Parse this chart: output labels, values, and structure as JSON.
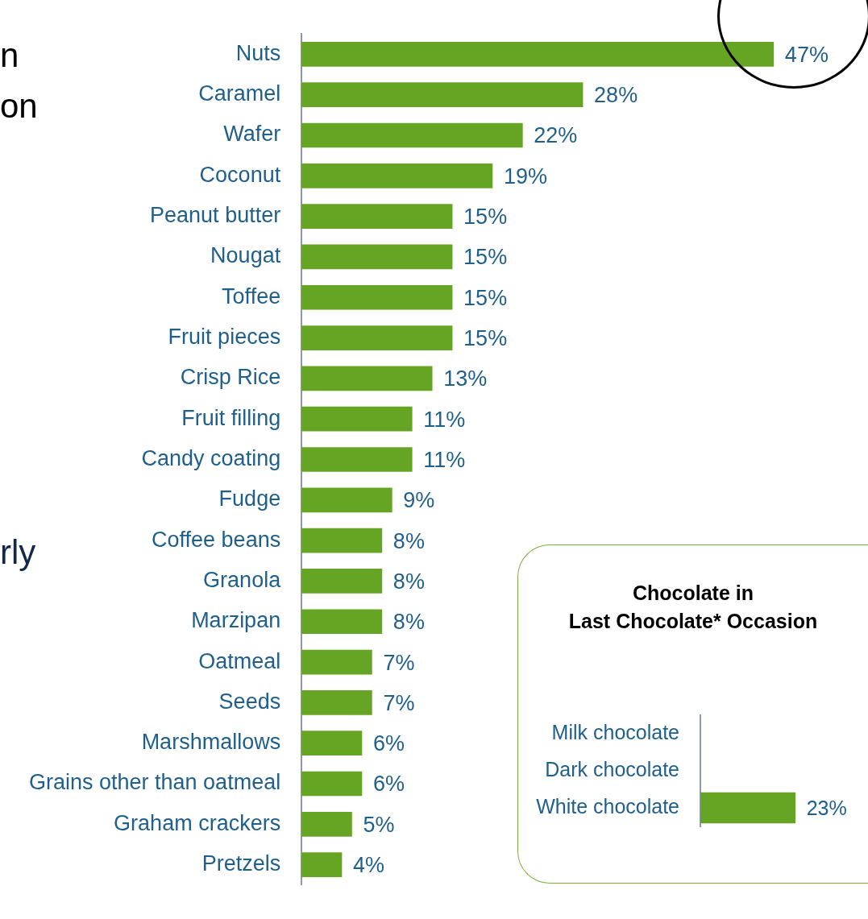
{
  "chart_data": [
    {
      "type": "bar",
      "orientation": "horizontal",
      "categories": [
        "Nuts",
        "Caramel",
        "Wafer",
        "Coconut",
        "Peanut butter",
        "Nougat",
        "Toffee",
        "Fruit pieces",
        "Crisp Rice",
        "Fruit filling",
        "Candy coating",
        "Fudge",
        "Coffee beans",
        "Granola",
        "Marzipan",
        "Oatmeal",
        "Seeds",
        "Marshmallows",
        "Grains other than oatmeal",
        "Graham crackers",
        "Pretzels"
      ],
      "values": [
        47,
        28,
        22,
        19,
        15,
        15,
        15,
        15,
        13,
        11,
        11,
        9,
        8,
        8,
        8,
        7,
        7,
        6,
        6,
        5,
        4
      ],
      "value_labels": [
        "47%",
        "28%",
        "22%",
        "19%",
        "15%",
        "15%",
        "15%",
        "15%",
        "13%",
        "11%",
        "11%",
        "9%",
        "8%",
        "8%",
        "8%",
        "7%",
        "7%",
        "6%",
        "6%",
        "5%",
        "4%"
      ],
      "color": "#66a523",
      "annotations": [
        "n",
        "on",
        "rly"
      ]
    },
    {
      "type": "bar",
      "orientation": "horizontal",
      "title": "Chocolate in\nLast Chocolate* Occasion",
      "categories": [
        "Milk chocolate",
        "Dark chocolate",
        "White chocolate"
      ],
      "values": [
        null,
        null,
        23
      ],
      "value_labels": [
        null,
        null,
        "23%"
      ],
      "color": "#66a523"
    }
  ]
}
